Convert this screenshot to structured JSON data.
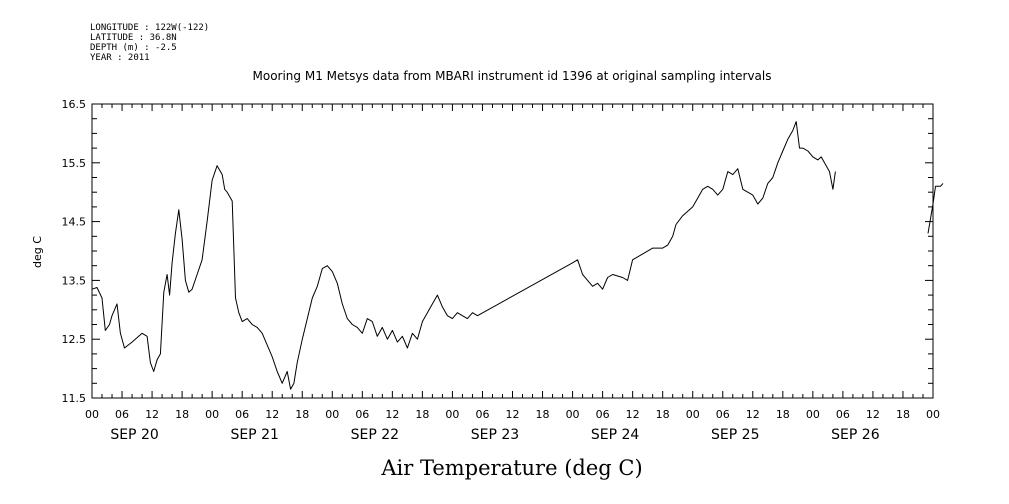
{
  "meta": {
    "longitude": "LONGITUDE : 122W(-122)",
    "latitude": "LATITUDE : 36.8N",
    "depth": "DEPTH (m) : -2.5",
    "year": "YEAR : 2011"
  },
  "chart_data": {
    "type": "line",
    "title": "Mooring M1 Metsys data from MBARI instrument id 1396 at original sampling intervals",
    "xlabel": "Air Temperature (deg C)",
    "ylabel": "deg C",
    "xlim": [
      "2011-09-20T00:00",
      "2011-09-27T00:00"
    ],
    "ylim": [
      11.5,
      16.5
    ],
    "yticks": [
      11.5,
      12.5,
      13.5,
      14.5,
      15.5,
      16.5
    ],
    "hour_tick_labels": [
      "00",
      "06",
      "12",
      "18",
      "00",
      "06",
      "12",
      "18",
      "00",
      "06",
      "12",
      "18",
      "00",
      "06",
      "12",
      "18",
      "00",
      "06",
      "12",
      "18",
      "00",
      "06",
      "12",
      "18",
      "00",
      "06",
      "12",
      "18",
      "00"
    ],
    "day_labels": [
      "SEP 20",
      "SEP 21",
      "SEP 22",
      "SEP 23",
      "SEP 24",
      "SEP 25",
      "SEP 26"
    ],
    "grid": false,
    "series": [
      {
        "segments": [
          [
            [
              "2011-09-20T00:00",
              13.35
            ],
            [
              "2011-09-20T01:00",
              13.38
            ],
            [
              "2011-09-20T02:00",
              13.2
            ],
            [
              "2011-09-20T02:40",
              12.65
            ],
            [
              "2011-09-20T03:30",
              12.75
            ],
            [
              "2011-09-20T04:00",
              12.9
            ],
            [
              "2011-09-20T05:00",
              13.1
            ],
            [
              "2011-09-20T05:40",
              12.6
            ],
            [
              "2011-09-20T06:30",
              12.35
            ],
            [
              "2011-09-20T08:00",
              12.45
            ],
            [
              "2011-09-20T10:00",
              12.6
            ],
            [
              "2011-09-20T11:00",
              12.55
            ],
            [
              "2011-09-20T11:40",
              12.1
            ],
            [
              "2011-09-20T12:20",
              11.95
            ],
            [
              "2011-09-20T13:00",
              12.15
            ],
            [
              "2011-09-20T13:40",
              12.25
            ],
            [
              "2011-09-20T14:20",
              13.3
            ],
            [
              "2011-09-20T15:00",
              13.6
            ],
            [
              "2011-09-20T15:30",
              13.25
            ],
            [
              "2011-09-20T16:00",
              13.8
            ],
            [
              "2011-09-20T16:40",
              14.3
            ],
            [
              "2011-09-20T17:20",
              14.7
            ],
            [
              "2011-09-20T18:00",
              14.2
            ],
            [
              "2011-09-20T18:40",
              13.5
            ],
            [
              "2011-09-20T19:20",
              13.3
            ],
            [
              "2011-09-20T20:00",
              13.35
            ],
            [
              "2011-09-20T21:00",
              13.6
            ],
            [
              "2011-09-20T22:00",
              13.85
            ],
            [
              "2011-09-20T23:00",
              14.5
            ],
            [
              "2011-09-21T00:00",
              15.2
            ],
            [
              "2011-09-21T01:00",
              15.45
            ],
            [
              "2011-09-21T02:00",
              15.3
            ],
            [
              "2011-09-21T02:30",
              15.05
            ],
            [
              "2011-09-21T03:00",
              15.0
            ],
            [
              "2011-09-21T04:00",
              14.85
            ],
            [
              "2011-09-21T04:40",
              13.2
            ],
            [
              "2011-09-21T05:20",
              12.95
            ],
            [
              "2011-09-21T06:00",
              12.8
            ],
            [
              "2011-09-21T07:00",
              12.85
            ],
            [
              "2011-09-21T08:00",
              12.75
            ],
            [
              "2011-09-21T09:00",
              12.7
            ],
            [
              "2011-09-21T10:00",
              12.6
            ],
            [
              "2011-09-21T11:00",
              12.4
            ],
            [
              "2011-09-21T12:00",
              12.2
            ],
            [
              "2011-09-21T13:00",
              11.95
            ],
            [
              "2011-09-21T14:00",
              11.75
            ],
            [
              "2011-09-21T15:00",
              11.95
            ],
            [
              "2011-09-21T15:40",
              11.65
            ],
            [
              "2011-09-21T16:20",
              11.75
            ],
            [
              "2011-09-21T17:00",
              12.1
            ],
            [
              "2011-09-21T18:00",
              12.5
            ],
            [
              "2011-09-21T19:00",
              12.85
            ],
            [
              "2011-09-21T20:00",
              13.2
            ],
            [
              "2011-09-21T21:00",
              13.4
            ],
            [
              "2011-09-21T22:00",
              13.7
            ],
            [
              "2011-09-21T23:00",
              13.75
            ],
            [
              "2011-09-22T00:00",
              13.65
            ],
            [
              "2011-09-22T01:00",
              13.45
            ],
            [
              "2011-09-22T02:00",
              13.1
            ],
            [
              "2011-09-22T03:00",
              12.85
            ],
            [
              "2011-09-22T04:00",
              12.75
            ],
            [
              "2011-09-22T05:00",
              12.7
            ],
            [
              "2011-09-22T06:00",
              12.6
            ],
            [
              "2011-09-22T07:00",
              12.85
            ],
            [
              "2011-09-22T08:00",
              12.8
            ],
            [
              "2011-09-22T09:00",
              12.55
            ],
            [
              "2011-09-22T10:00",
              12.7
            ],
            [
              "2011-09-22T11:00",
              12.5
            ],
            [
              "2011-09-22T12:00",
              12.65
            ],
            [
              "2011-09-22T13:00",
              12.45
            ],
            [
              "2011-09-22T14:00",
              12.55
            ],
            [
              "2011-09-22T15:00",
              12.35
            ],
            [
              "2011-09-22T16:00",
              12.6
            ],
            [
              "2011-09-22T17:00",
              12.5
            ],
            [
              "2011-09-22T18:00",
              12.8
            ],
            [
              "2011-09-22T19:00",
              12.95
            ],
            [
              "2011-09-22T20:00",
              13.1
            ],
            [
              "2011-09-22T21:00",
              13.25
            ],
            [
              "2011-09-22T22:00",
              13.05
            ],
            [
              "2011-09-22T23:00",
              12.9
            ],
            [
              "2011-09-23T00:00",
              12.85
            ],
            [
              "2011-09-23T01:00",
              12.95
            ],
            [
              "2011-09-23T02:00",
              12.9
            ],
            [
              "2011-09-23T03:00",
              12.85
            ],
            [
              "2011-09-23T04:00",
              12.95
            ],
            [
              "2011-09-23T05:00",
              12.9
            ],
            [
              "2011-09-24T00:00",
              13.8
            ],
            [
              "2011-09-24T01:00",
              13.85
            ],
            [
              "2011-09-24T02:00",
              13.6
            ],
            [
              "2011-09-24T03:00",
              13.5
            ],
            [
              "2011-09-24T04:00",
              13.4
            ],
            [
              "2011-09-24T05:00",
              13.45
            ],
            [
              "2011-09-24T06:00",
              13.35
            ],
            [
              "2011-09-24T07:00",
              13.55
            ],
            [
              "2011-09-24T08:00",
              13.6
            ],
            [
              "2011-09-24T10:00",
              13.55
            ],
            [
              "2011-09-24T11:00",
              13.5
            ],
            [
              "2011-09-24T12:00",
              13.85
            ],
            [
              "2011-09-24T14:00",
              13.95
            ],
            [
              "2011-09-24T16:00",
              14.05
            ],
            [
              "2011-09-24T18:00",
              14.05
            ],
            [
              "2011-09-24T19:00",
              14.1
            ],
            [
              "2011-09-24T20:00",
              14.25
            ],
            [
              "2011-09-24T20:40",
              14.45
            ],
            [
              "2011-09-24T22:00",
              14.6
            ],
            [
              "2011-09-25T00:00",
              14.75
            ],
            [
              "2011-09-25T01:00",
              14.9
            ],
            [
              "2011-09-25T02:00",
              15.05
            ],
            [
              "2011-09-25T03:00",
              15.1
            ],
            [
              "2011-09-25T04:00",
              15.05
            ],
            [
              "2011-09-25T05:00",
              14.95
            ],
            [
              "2011-09-25T06:00",
              15.05
            ],
            [
              "2011-09-25T07:00",
              15.35
            ],
            [
              "2011-09-25T08:00",
              15.3
            ],
            [
              "2011-09-25T09:00",
              15.4
            ],
            [
              "2011-09-25T10:00",
              15.05
            ],
            [
              "2011-09-25T11:00",
              15.0
            ],
            [
              "2011-09-25T12:00",
              14.95
            ],
            [
              "2011-09-25T13:00",
              14.8
            ],
            [
              "2011-09-25T14:00",
              14.9
            ],
            [
              "2011-09-25T15:00",
              15.15
            ],
            [
              "2011-09-25T16:00",
              15.25
            ],
            [
              "2011-09-25T17:00",
              15.5
            ],
            [
              "2011-09-25T18:00",
              15.7
            ],
            [
              "2011-09-25T19:00",
              15.9
            ],
            [
              "2011-09-25T20:00",
              16.05
            ],
            [
              "2011-09-25T20:40",
              16.2
            ],
            [
              "2011-09-25T21:20",
              15.75
            ],
            [
              "2011-09-25T22:00",
              15.75
            ],
            [
              "2011-09-25T23:00",
              15.7
            ],
            [
              "2011-09-26T00:00",
              15.6
            ],
            [
              "2011-09-26T01:00",
              15.55
            ],
            [
              "2011-09-26T01:40",
              15.6
            ],
            [
              "2011-09-26T02:20",
              15.5
            ],
            [
              "2011-09-26T03:20",
              15.35
            ],
            [
              "2011-09-26T04:00",
              15.05
            ],
            [
              "2011-09-26T04:30",
              15.35
            ]
          ],
          [
            [
              "2011-09-26T23:00",
              14.3
            ],
            [
              "2011-09-27T00:00",
              14.8
            ],
            [
              "2011-09-27T00:30",
              15.1
            ],
            [
              "2011-09-27T01:30",
              15.1
            ],
            [
              "2011-09-27T02:00",
              15.15
            ]
          ]
        ]
      }
    ]
  }
}
